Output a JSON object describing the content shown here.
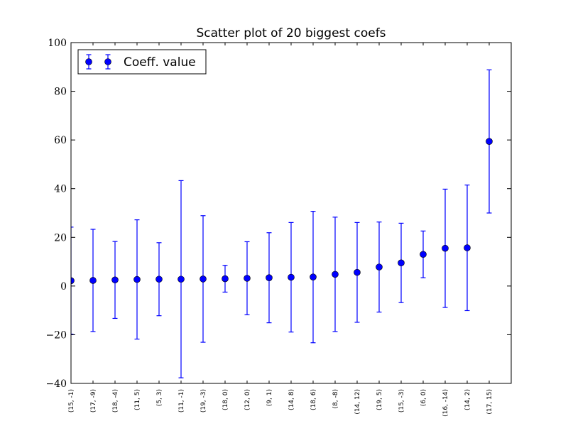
{
  "chart_data": {
    "type": "scatter",
    "title": "Scatter plot of 20 biggest coefs",
    "xlabel": "",
    "ylabel": "",
    "ylim": [
      -40,
      100
    ],
    "yticks": [
      -40,
      -20,
      0,
      20,
      40,
      60,
      80,
      100
    ],
    "ytick_labels": [
      "−40",
      "−20",
      "0",
      "20",
      "40",
      "60",
      "80",
      "100"
    ],
    "grid": false,
    "legend_position": "top-left",
    "color": "#0000ff",
    "categories": [
      "(15, -1)",
      "(17, -9)",
      "(18, -4)",
      "(11, 5)",
      "(5, 3)",
      "(11, -1)",
      "(19, -3)",
      "(18, 0)",
      "(12, 0)",
      "(9, 1)",
      "(14, 8)",
      "(18, 6)",
      "(8, -8)",
      "(14, 12)",
      "(19, 5)",
      "(15, -3)",
      "(6, 0)",
      "(16, -14)",
      "(14, 2)",
      "(17, 15)"
    ],
    "series": [
      {
        "name": "Coeff. value",
        "values": [
          2.2,
          2.3,
          2.5,
          2.7,
          2.8,
          2.8,
          2.9,
          3.0,
          3.2,
          3.4,
          3.6,
          3.7,
          4.8,
          5.6,
          7.8,
          9.5,
          13.0,
          15.5,
          15.7,
          59.4
        ],
        "errors": [
          22.0,
          21.0,
          15.8,
          24.5,
          15.0,
          40.5,
          26.0,
          5.5,
          15.0,
          18.5,
          22.5,
          27.0,
          23.5,
          20.5,
          18.5,
          16.3,
          9.6,
          24.3,
          25.8,
          29.4
        ]
      }
    ]
  }
}
